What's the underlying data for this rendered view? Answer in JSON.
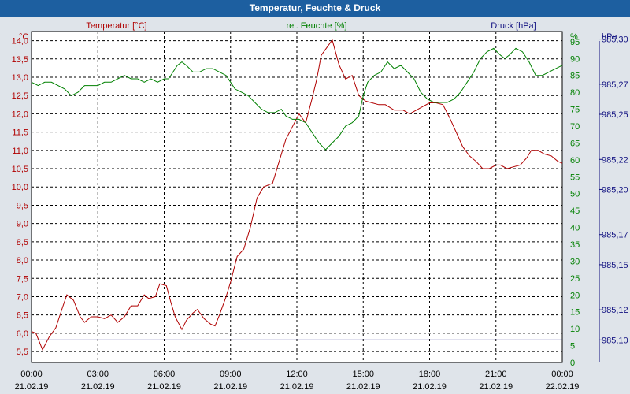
{
  "window": {
    "title": "Temperatur, Feuchte & Druck"
  },
  "chart_data": {
    "type": "line",
    "title": "Temperatur, Feuchte & Druck",
    "axes": {
      "temperature": {
        "unit": "°C",
        "label": "Temperatur [°C]",
        "ylim": [
          5.2,
          14.25
        ],
        "ticks": [
          "5,5",
          "6,0",
          "6,5",
          "7,0",
          "7,5",
          "8,0",
          "8,5",
          "9,0",
          "9,5",
          "10,0",
          "10,5",
          "11,0",
          "11,5",
          "12,0",
          "12,5",
          "13,0",
          "13,5",
          "14,0"
        ]
      },
      "humidity": {
        "unit": "%",
        "label": "rel. Feuchte [%]",
        "ylim": [
          0,
          98
        ],
        "ticks": [
          "0",
          "5",
          "10",
          "15",
          "20",
          "25",
          "30",
          "35",
          "40",
          "45",
          "50",
          "55",
          "60",
          "65",
          "70",
          "75",
          "80",
          "85",
          "90",
          "95"
        ]
      },
      "pressure": {
        "unit": "hPa",
        "label": "Druck [hPa]",
        "ylim": [
          985.085,
          985.305
        ],
        "ticks": [
          "985,10",
          "985,12",
          "985,15",
          "985,17",
          "985,20",
          "985,22",
          "985,25",
          "985,27",
          "985,30"
        ]
      }
    },
    "x_ticks": [
      {
        "time": "00:00",
        "date": "21.02.19"
      },
      {
        "time": "03:00",
        "date": "21.02.19"
      },
      {
        "time": "06:00",
        "date": "21.02.19"
      },
      {
        "time": "09:00",
        "date": "21.02.19"
      },
      {
        "time": "12:00",
        "date": "21.02.19"
      },
      {
        "time": "15:00",
        "date": "21.02.19"
      },
      {
        "time": "18:00",
        "date": "21.02.19"
      },
      {
        "time": "21:00",
        "date": "21.02.19"
      },
      {
        "time": "00:00",
        "date": "22.02.19"
      }
    ],
    "xlim_hours": [
      0,
      24
    ],
    "grid": true,
    "series": [
      {
        "name": "Temperatur [°C]",
        "axis": "temperature",
        "color": "#b00000",
        "points": [
          [
            0,
            6.05
          ],
          [
            0.2,
            6.0
          ],
          [
            0.5,
            5.55
          ],
          [
            0.8,
            5.9
          ],
          [
            1.1,
            6.15
          ],
          [
            1.4,
            6.7
          ],
          [
            1.6,
            7.05
          ],
          [
            1.9,
            6.9
          ],
          [
            2.2,
            6.45
          ],
          [
            2.4,
            6.3
          ],
          [
            2.7,
            6.45
          ],
          [
            3.0,
            6.45
          ],
          [
            3.3,
            6.4
          ],
          [
            3.6,
            6.5
          ],
          [
            3.9,
            6.3
          ],
          [
            4.2,
            6.45
          ],
          [
            4.5,
            6.75
          ],
          [
            4.8,
            6.75
          ],
          [
            5.1,
            7.05
          ],
          [
            5.3,
            6.95
          ],
          [
            5.6,
            7.0
          ],
          [
            5.8,
            7.35
          ],
          [
            6.1,
            7.3
          ],
          [
            6.3,
            6.85
          ],
          [
            6.5,
            6.45
          ],
          [
            6.8,
            6.1
          ],
          [
            7.0,
            6.35
          ],
          [
            7.3,
            6.55
          ],
          [
            7.5,
            6.65
          ],
          [
            7.8,
            6.4
          ],
          [
            8.1,
            6.25
          ],
          [
            8.3,
            6.2
          ],
          [
            8.5,
            6.5
          ],
          [
            8.8,
            7.0
          ],
          [
            9.0,
            7.4
          ],
          [
            9.3,
            8.1
          ],
          [
            9.6,
            8.3
          ],
          [
            9.9,
            8.9
          ],
          [
            10.2,
            9.7
          ],
          [
            10.5,
            10.0
          ],
          [
            10.9,
            10.1
          ],
          [
            11.2,
            10.7
          ],
          [
            11.5,
            11.3
          ],
          [
            11.8,
            11.65
          ],
          [
            12.1,
            12.0
          ],
          [
            12.4,
            11.75
          ],
          [
            12.7,
            12.45
          ],
          [
            12.9,
            12.95
          ],
          [
            13.1,
            13.6
          ],
          [
            13.4,
            13.85
          ],
          [
            13.6,
            14.02
          ],
          [
            13.9,
            13.35
          ],
          [
            14.2,
            12.95
          ],
          [
            14.5,
            13.05
          ],
          [
            14.8,
            12.5
          ],
          [
            15.1,
            12.35
          ],
          [
            15.4,
            12.3
          ],
          [
            15.7,
            12.25
          ],
          [
            16.0,
            12.25
          ],
          [
            16.4,
            12.1
          ],
          [
            16.8,
            12.1
          ],
          [
            17.1,
            12.0
          ],
          [
            17.4,
            12.1
          ],
          [
            17.7,
            12.2
          ],
          [
            18.0,
            12.3
          ],
          [
            18.3,
            12.3
          ],
          [
            18.6,
            12.25
          ],
          [
            18.9,
            11.9
          ],
          [
            19.2,
            11.5
          ],
          [
            19.5,
            11.1
          ],
          [
            19.8,
            10.85
          ],
          [
            20.1,
            10.7
          ],
          [
            20.4,
            10.5
          ],
          [
            20.7,
            10.5
          ],
          [
            21.0,
            10.6
          ],
          [
            21.2,
            10.6
          ],
          [
            21.5,
            10.5
          ],
          [
            21.8,
            10.55
          ],
          [
            22.1,
            10.6
          ],
          [
            22.4,
            10.8
          ],
          [
            22.6,
            11.0
          ],
          [
            22.9,
            11.0
          ],
          [
            23.2,
            10.9
          ],
          [
            23.5,
            10.85
          ],
          [
            23.8,
            10.7
          ],
          [
            24.0,
            10.65
          ]
        ]
      },
      {
        "name": "rel. Feuchte [%]",
        "axis": "humidity",
        "color": "#008000",
        "points": [
          [
            0,
            83
          ],
          [
            0.3,
            82
          ],
          [
            0.6,
            83
          ],
          [
            0.9,
            83
          ],
          [
            1.2,
            82
          ],
          [
            1.5,
            81
          ],
          [
            1.8,
            79
          ],
          [
            2.1,
            80
          ],
          [
            2.4,
            82
          ],
          [
            2.7,
            82
          ],
          [
            3.0,
            82
          ],
          [
            3.3,
            83
          ],
          [
            3.6,
            83
          ],
          [
            3.9,
            84
          ],
          [
            4.2,
            85
          ],
          [
            4.5,
            84
          ],
          [
            4.8,
            84
          ],
          [
            5.1,
            83
          ],
          [
            5.4,
            84
          ],
          [
            5.7,
            83
          ],
          [
            6.0,
            84
          ],
          [
            6.2,
            84
          ],
          [
            6.4,
            86
          ],
          [
            6.6,
            88
          ],
          [
            6.8,
            89
          ],
          [
            7.0,
            88
          ],
          [
            7.3,
            86
          ],
          [
            7.6,
            86
          ],
          [
            7.9,
            87
          ],
          [
            8.2,
            87
          ],
          [
            8.5,
            86
          ],
          [
            8.8,
            85
          ],
          [
            9.0,
            83
          ],
          [
            9.2,
            81
          ],
          [
            9.5,
            80
          ],
          [
            9.8,
            79
          ],
          [
            10.1,
            77
          ],
          [
            10.4,
            75
          ],
          [
            10.7,
            74
          ],
          [
            11.0,
            74
          ],
          [
            11.3,
            75
          ],
          [
            11.5,
            73
          ],
          [
            11.8,
            72
          ],
          [
            12.1,
            72
          ],
          [
            12.4,
            71
          ],
          [
            12.7,
            68
          ],
          [
            13.0,
            65
          ],
          [
            13.3,
            63
          ],
          [
            13.6,
            65
          ],
          [
            13.9,
            67
          ],
          [
            14.2,
            70
          ],
          [
            14.5,
            71
          ],
          [
            14.8,
            73
          ],
          [
            15.0,
            79
          ],
          [
            15.2,
            83
          ],
          [
            15.5,
            85
          ],
          [
            15.8,
            86
          ],
          [
            16.1,
            89
          ],
          [
            16.4,
            87
          ],
          [
            16.7,
            88
          ],
          [
            17.0,
            86
          ],
          [
            17.3,
            84
          ],
          [
            17.6,
            80
          ],
          [
            17.9,
            78
          ],
          [
            18.2,
            77
          ],
          [
            18.5,
            77
          ],
          [
            18.8,
            77
          ],
          [
            19.1,
            78
          ],
          [
            19.4,
            80
          ],
          [
            19.7,
            83
          ],
          [
            20.0,
            86
          ],
          [
            20.3,
            90
          ],
          [
            20.6,
            92
          ],
          [
            20.9,
            93
          ],
          [
            21.2,
            91
          ],
          [
            21.4,
            90
          ],
          [
            21.6,
            91
          ],
          [
            21.9,
            93
          ],
          [
            22.2,
            92
          ],
          [
            22.5,
            89
          ],
          [
            22.8,
            85
          ],
          [
            23.1,
            85
          ],
          [
            23.4,
            86
          ],
          [
            23.7,
            87
          ],
          [
            24.0,
            88
          ]
        ]
      },
      {
        "name": "Druck [hPa]",
        "axis": "pressure",
        "color": "#101080",
        "points": [
          [
            0,
            985.1
          ],
          [
            24,
            985.1
          ]
        ]
      }
    ]
  }
}
